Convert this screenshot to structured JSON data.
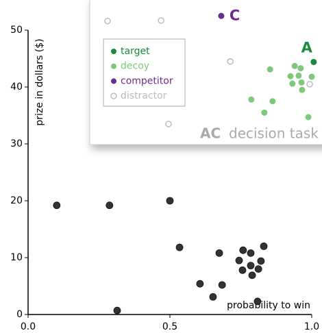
{
  "chart_data": {
    "type": "scatter",
    "x_label": "probability to win",
    "y_label": "prize in dollars ($)",
    "xlim": [
      0,
      1
    ],
    "ylim": [
      0,
      50
    ],
    "xticks": [
      {
        "value": 0,
        "label": "0.0"
      },
      {
        "value": 0.5,
        "label": "0.5"
      },
      {
        "value": 1,
        "label": "1.0"
      }
    ],
    "yticks": [
      0,
      10,
      20,
      30,
      40,
      50
    ],
    "points": {
      "color": "#333333",
      "x": [
        0.101,
        0.287,
        0.5,
        0.534,
        0.674,
        0.314,
        0.606,
        0.652,
        0.684,
        0.744,
        0.758,
        0.785,
        0.756,
        0.785,
        0.79,
        0.812,
        0.821,
        0.831,
        0.809
      ],
      "y": [
        19.2,
        19.2,
        20.0,
        11.8,
        10.8,
        0.7,
        5.4,
        3.1,
        5.2,
        9.5,
        11.3,
        10.8,
        7.8,
        8.6,
        6.9,
        8.0,
        9.4,
        12.0,
        2.3
      ]
    },
    "inset": {
      "title_bold": "AC",
      "title": "decision task",
      "series": [
        {
          "name": "target",
          "color": "#1a8a3e",
          "label": "A",
          "x": [
            1.007
          ],
          "y": [
            44.4
          ]
        },
        {
          "name": "decoy",
          "color": "#80c77c",
          "x": [
            0.853,
            0.94,
            0.961,
            0.925,
            0.954,
            1.0,
            0.932,
            0.964,
            0.966,
            0.787,
            0.862,
            0.833,
            0.988
          ],
          "y": [
            43.1,
            43.7,
            43.3,
            41.9,
            42.0,
            41.8,
            40.6,
            40.8,
            39.5,
            37.8,
            37.5,
            35.5,
            34.7
          ]
        },
        {
          "name": "competitor",
          "color": "#6b2c8e",
          "label": "C",
          "x": [
            0.681
          ],
          "y": [
            52.5
          ]
        },
        {
          "name": "distractor",
          "color": "#bbbbbb",
          "hollow": true,
          "x": [
            0.28,
            0.469,
            0.713,
            0.495,
            0.993
          ],
          "y": [
            51.6,
            51.7,
            44.5,
            33.5,
            40.5
          ]
        }
      ]
    }
  }
}
